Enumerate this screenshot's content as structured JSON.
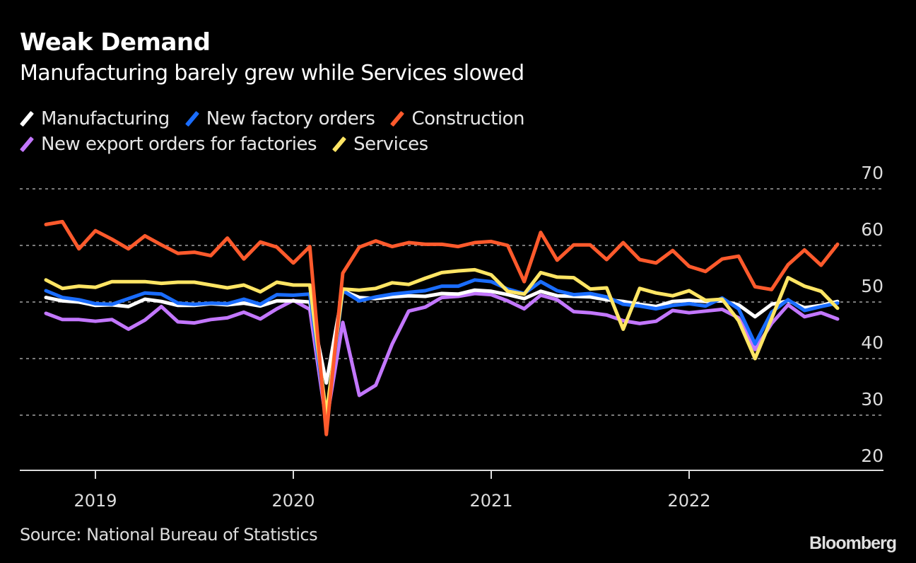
{
  "header": {
    "title": "Weak Demand",
    "subtitle": "Manufacturing barely grew while Services slowed"
  },
  "legend": [
    {
      "label": "Manufacturing",
      "color": "#ffffff"
    },
    {
      "label": "New factory orders",
      "color": "#1a6dff"
    },
    {
      "label": "Construction",
      "color": "#ff5a2c"
    },
    {
      "label": "New export orders for factories",
      "color": "#c377ff"
    },
    {
      "label": "Services",
      "color": "#ffe564"
    }
  ],
  "footer": {
    "source": "Source: National Bureau of Statistics",
    "brand": "Bloomberg"
  },
  "chart_data": {
    "type": "line",
    "title": "Weak Demand",
    "subtitle": "Manufacturing barely grew while Services slowed",
    "xlabel": "",
    "ylabel": "",
    "ylim": [
      20,
      70
    ],
    "y_ticks": [
      20,
      30,
      40,
      50,
      60,
      70
    ],
    "y_axis_side": "right",
    "grid": "horizontal dotted",
    "legend_position": "top-left",
    "x_start": "2018-09",
    "x_end": "2022-09",
    "x_tick_labels": [
      "2019",
      "2020",
      "2021",
      "2022"
    ],
    "x": [
      "2018-09",
      "2018-10",
      "2018-11",
      "2018-12",
      "2019-01",
      "2019-02",
      "2019-03",
      "2019-04",
      "2019-05",
      "2019-06",
      "2019-07",
      "2019-08",
      "2019-09",
      "2019-10",
      "2019-11",
      "2019-12",
      "2020-01",
      "2020-02",
      "2020-03",
      "2020-04",
      "2020-05",
      "2020-06",
      "2020-07",
      "2020-08",
      "2020-09",
      "2020-10",
      "2020-11",
      "2020-12",
      "2021-01",
      "2021-02",
      "2021-03",
      "2021-04",
      "2021-05",
      "2021-06",
      "2021-07",
      "2021-08",
      "2021-09",
      "2021-10",
      "2021-11",
      "2021-12",
      "2022-01",
      "2022-02",
      "2022-03",
      "2022-04",
      "2022-05",
      "2022-06",
      "2022-07",
      "2022-08",
      "2022-09"
    ],
    "series": [
      {
        "name": "Manufacturing",
        "color": "#ffffff",
        "values": [
          50.8,
          50.2,
          50.0,
          49.4,
          49.5,
          49.2,
          50.5,
          50.1,
          49.4,
          49.4,
          49.7,
          49.5,
          49.8,
          49.3,
          50.2,
          50.2,
          50.0,
          35.7,
          52.0,
          50.8,
          50.6,
          50.9,
          51.1,
          51.0,
          51.5,
          51.4,
          52.1,
          51.9,
          51.3,
          50.6,
          51.9,
          51.1,
          51.0,
          50.9,
          50.4,
          50.1,
          49.6,
          49.2,
          50.1,
          50.3,
          50.1,
          50.2,
          49.5,
          47.4,
          49.6,
          50.2,
          49.0,
          49.4,
          50.1
        ]
      },
      {
        "name": "New factory orders",
        "color": "#1a6dff",
        "values": [
          52.0,
          50.8,
          50.4,
          49.7,
          49.6,
          50.6,
          51.6,
          51.4,
          49.8,
          49.6,
          49.8,
          49.7,
          50.5,
          49.6,
          51.3,
          51.2,
          51.4,
          29.3,
          52.0,
          50.2,
          50.9,
          51.4,
          51.7,
          52.0,
          52.8,
          52.8,
          53.9,
          53.6,
          52.3,
          51.5,
          53.6,
          52.0,
          51.3,
          51.5,
          50.9,
          49.6,
          49.3,
          48.8,
          49.4,
          49.7,
          49.3,
          50.7,
          48.8,
          42.6,
          48.2,
          50.4,
          48.5,
          49.2,
          49.8
        ]
      },
      {
        "name": "Construction",
        "color": "#ff5a2c",
        "values": [
          63.7,
          64.2,
          59.4,
          62.6,
          61.1,
          59.4,
          61.7,
          60.1,
          58.6,
          58.8,
          58.2,
          61.3,
          57.6,
          60.6,
          59.7,
          56.9,
          59.8,
          26.6,
          55.1,
          59.7,
          60.8,
          59.8,
          60.5,
          60.2,
          60.2,
          59.8,
          60.5,
          60.7,
          60.0,
          53.6,
          62.3,
          57.4,
          60.1,
          60.1,
          57.5,
          60.5,
          57.5,
          56.9,
          59.1,
          56.3,
          55.4,
          57.6,
          58.1,
          52.7,
          52.2,
          56.6,
          59.2,
          56.5,
          60.2
        ]
      },
      {
        "name": "New export orders for factories",
        "color": "#c377ff",
        "values": [
          48.0,
          46.9,
          46.9,
          46.6,
          46.9,
          45.2,
          46.8,
          49.2,
          46.5,
          46.3,
          46.9,
          47.2,
          48.2,
          47.0,
          48.8,
          50.3,
          48.7,
          28.7,
          46.4,
          33.5,
          35.3,
          42.6,
          48.4,
          49.1,
          50.8,
          51.0,
          51.5,
          51.3,
          50.2,
          48.8,
          51.2,
          50.4,
          48.3,
          48.1,
          47.7,
          46.7,
          46.2,
          46.6,
          48.5,
          48.1,
          48.4,
          48.7,
          47.2,
          41.6,
          46.2,
          49.5,
          47.4,
          48.1,
          47.0
        ]
      },
      {
        "name": "Services",
        "color": "#ffe564",
        "values": [
          53.9,
          52.4,
          52.8,
          52.6,
          53.6,
          53.6,
          53.6,
          53.3,
          53.5,
          53.5,
          53.0,
          52.5,
          53.0,
          51.8,
          53.5,
          53.0,
          53.0,
          30.1,
          52.3,
          52.1,
          52.4,
          53.4,
          53.1,
          54.2,
          55.2,
          55.5,
          55.7,
          54.8,
          51.9,
          51.4,
          55.2,
          54.4,
          54.3,
          52.3,
          52.5,
          45.2,
          52.4,
          51.6,
          51.1,
          52.0,
          50.3,
          50.5,
          46.7,
          40.0,
          47.1,
          54.3,
          52.8,
          51.9,
          48.9
        ]
      }
    ]
  }
}
